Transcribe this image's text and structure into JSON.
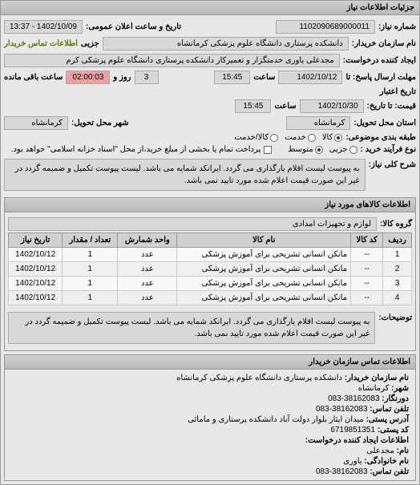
{
  "header": {
    "title": "جزئیات اطلاعات نیاز"
  },
  "request": {
    "number_label": "شماره نیاز:",
    "number": "1102090689000011",
    "announce_label": "تاریخ و ساعت اعلان عمومی:",
    "announce_value": "1402/10/09 - 13:37",
    "buyer_label": "نام سازمان خریدار:",
    "buyer": "دانشکده پرستاری دانشگاه علوم پزشکی کرمانشاه",
    "partial_label": "جزیی",
    "buyer_contact_label": "اطلاعات تماس خریدار",
    "creator_label": "ایجاد کننده درخواست:",
    "creator": "مجدعلی یاوری خدمتگزار و تعمیرکار دانشکده پرستاری دانشگاه علوم پزشکی کرم",
    "deadline_from_label": "مهلت ارسال پاسخ: تا",
    "deadline_from_date": "1402/10/12",
    "deadline_from_time_label": "ساعت",
    "deadline_from_time": "15:45",
    "remain_days_label": "روز و",
    "remain_days": "3",
    "remain_time": "02:00:03",
    "remain_label": "ساعت باقی مانده",
    "validity_label": "تاریخ اعتبار",
    "price_to_label": "قیمت: تا تاریخ:",
    "price_to_date": "1402/10/30",
    "price_to_time_label": "ساعت",
    "price_to_time": "15:45",
    "delivery_state_label": "استان محل تحویل:",
    "delivery_state": "کرمانشاه",
    "delivery_city_label": "شهر محل تحویل:",
    "delivery_city": "کرمانشاه",
    "budget_label": "طبقه بندی موضوعی:",
    "budget_options": {
      "goods": "کالا",
      "service": "خدمت",
      "both": "کالا/خدمت"
    },
    "purchase_type_label": "نوع فرآیند خرید :",
    "purchase_options": {
      "small": "جزیی",
      "medium": "متوسط"
    },
    "payment_note": "پرداخت تمام یا بخشی از مبلغ خرید،از محل \"اسناد خزانه اسلامی\" خواهد بود.",
    "desc_label": "شرح کلی نیاز:",
    "desc": "به پیوست لیست اقلام بارگذاری می گردد. ایرانکد شمایه می باشد. لیست پیوست تکمیل و ضمیمه گردد در غیر این صورت قیمت اعلام شده مورد تایید نمی باشد."
  },
  "goods": {
    "header": "اطلاعات کالاهای مورد نیاز",
    "group_label": "گروه کالا:",
    "group": "لوازم و تجهیزات امدادی",
    "columns": {
      "row": "ردیف",
      "code": "کد کالا",
      "name": "نام کالا",
      "unit": "واحد شمارش",
      "qty": "تعداد / مقدار",
      "date": "تاریخ نیاز"
    },
    "rows": [
      {
        "row": "1",
        "code": "--",
        "name": "مانکن انسانی تشریحی برای آموزش پزشکی",
        "unit": "عدد",
        "qty": "1",
        "date": "1402/10/12"
      },
      {
        "row": "2",
        "code": "--",
        "name": "مانکن انسانی تشریحی برای آموزش پزشکی",
        "unit": "عدد",
        "qty": "1",
        "date": "1402/10/12"
      },
      {
        "row": "3",
        "code": "--",
        "name": "مانکن انسانی تشریحی برای آموزش پزشکی",
        "unit": "عدد",
        "qty": "1",
        "date": "1402/10/12"
      },
      {
        "row": "4",
        "code": "--",
        "name": "مانکن انسانی تشریحی برای آموزش پزشکی",
        "unit": "عدد",
        "qty": "1",
        "date": "1402/10/12"
      }
    ],
    "note_label": "توضیحات:",
    "note": "به پیوست لیست اقلام بارگذاری می گردد. ایرانکد شمایه می باشد. لیست پیوست تکمیل و ضمیمه گردد در غیر این صورت قیمت اعلام شده مورد تایید نمی باشد."
  },
  "contact": {
    "header": "اطلاعات تماس سازمان خریدار",
    "org_label": "نام سازمان خریدار:",
    "org": "دانشکده پرستاری دانشگاه علوم پزشکی کرمانشاه",
    "city_label": "شهر:",
    "city": "کرمانشاه",
    "fax_label": "دورنگار:",
    "fax": "38162083-083",
    "phone_label": "تلفن تماس:",
    "phone": "38162083-083",
    "addr_label": "آدرس پستی:",
    "addr": "میدان ایثار بلوار دولت آباد دانشکده پرستاری و مامائی",
    "zip_label": "کد پستی:",
    "zip": "6719851351",
    "creator_section": "اطلاعات ایجاد کننده درخواست:",
    "name_label": "نام:",
    "name": "مجدعلی",
    "family_label": "نام خانوادگی:",
    "family": "یاوری",
    "cphone_label": "تلفن تماس:",
    "cphone": "38162083-083"
  }
}
